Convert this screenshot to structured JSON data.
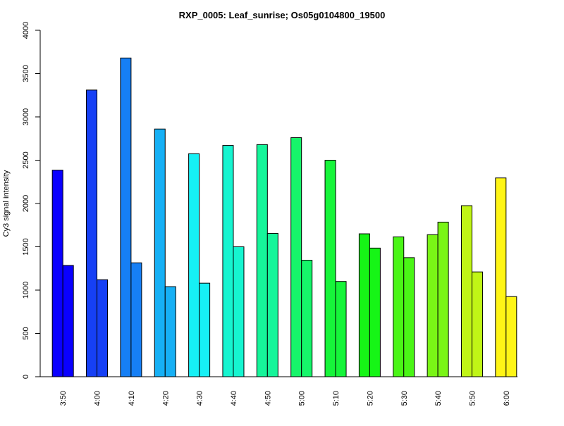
{
  "chart_data": {
    "type": "bar",
    "title": "RXP_0005: Leaf_sunrise; Os05g0104800_19500",
    "xlabel": "",
    "ylabel": "Cy3 signal intensity",
    "ylim": [
      0,
      4000
    ],
    "yticks": [
      0,
      500,
      1000,
      1500,
      2000,
      2500,
      3000,
      3500,
      4000
    ],
    "grid": false,
    "categories": [
      "3:50",
      "4:00",
      "4:10",
      "4:20",
      "4:30",
      "4:40",
      "4:50",
      "5:00",
      "5:10",
      "5:20",
      "5:30",
      "5:40",
      "5:50",
      "6:00"
    ],
    "colors": [
      "#0a00ff",
      "#1640f5",
      "#167ff5",
      "#16b0f5",
      "#16f0f5",
      "#16f5d0",
      "#16f59a",
      "#16f56a",
      "#16f53a",
      "#16f516",
      "#4af516",
      "#7af516",
      "#c0f516",
      "#fff516"
    ],
    "series": [
      {
        "values": [
          2385,
          3310,
          3680,
          2860,
          2575,
          2670,
          2680,
          2760,
          2500,
          1650,
          1615,
          1640,
          1975,
          2295
        ]
      },
      {
        "values": [
          1285,
          1120,
          1315,
          1040,
          1080,
          1500,
          1655,
          1345,
          1100,
          1485,
          1375,
          1785,
          1210,
          925
        ]
      }
    ]
  }
}
